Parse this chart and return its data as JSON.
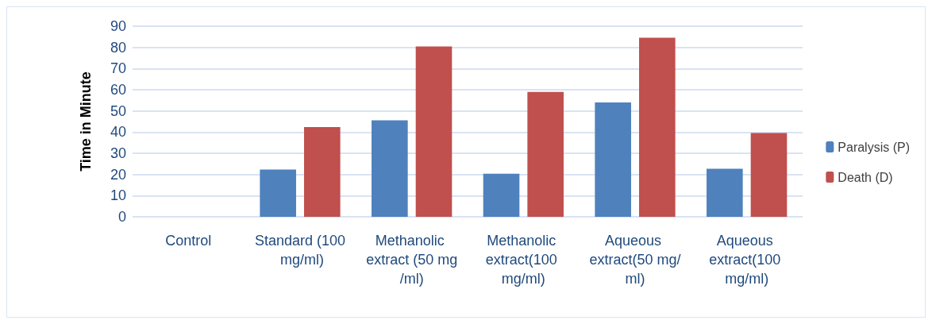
{
  "chart_data": {
    "type": "bar",
    "ylabel": "Time in Minute",
    "categories": [
      "Control",
      "Standard (100 mg/ml)",
      "Methanolic extract (50 mg/ml)",
      "Methanolic extract(100 mg/ml)",
      "Aqueous extract(50 mg/ml)",
      "Aqueous extract(100 mg/ml)"
    ],
    "series": [
      {
        "name": "Paralysis (P)",
        "color": "#4f81bd",
        "values": [
          0,
          22.3,
          45.6,
          20.3,
          54,
          22.7
        ]
      },
      {
        "name": "Death (D)",
        "color": "#c0504d",
        "values": [
          0,
          42.4,
          80.4,
          59,
          84.6,
          39.6
        ]
      }
    ],
    "ylim": [
      0,
      90
    ],
    "yticks": [
      0,
      10,
      20,
      30,
      40,
      50,
      60,
      70,
      80,
      90
    ],
    "grid": "y",
    "legend": "right"
  }
}
